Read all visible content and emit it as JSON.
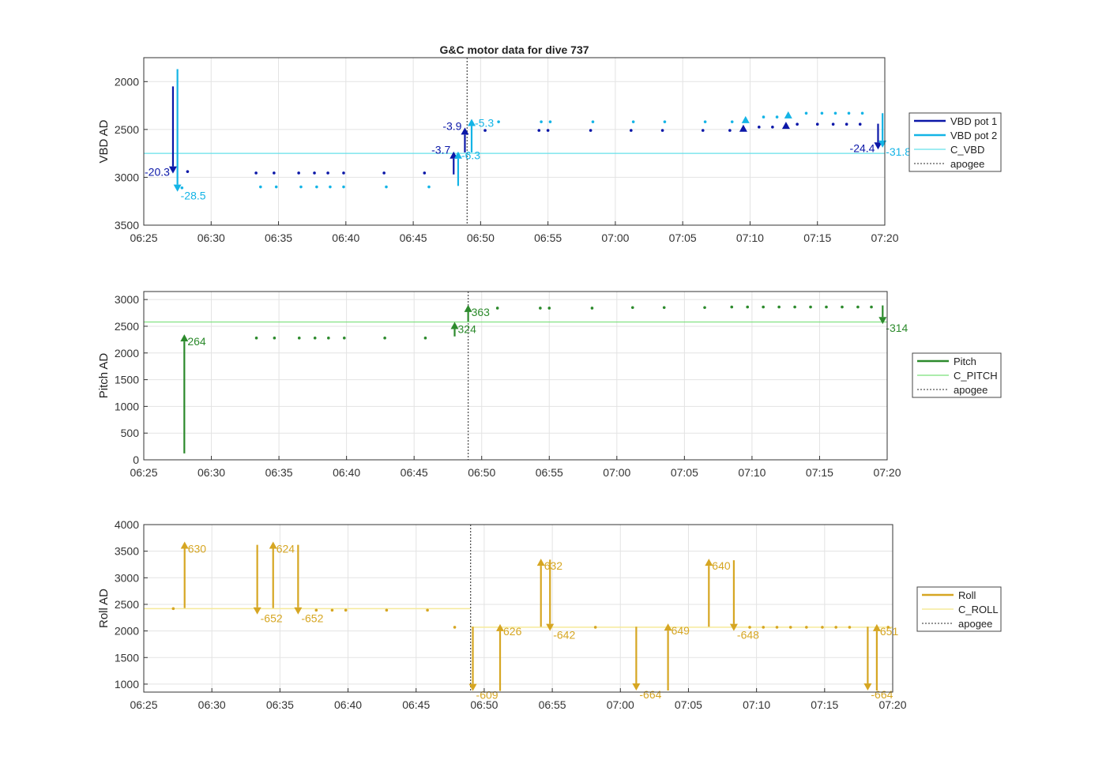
{
  "title": "G&C motor data for dive 737",
  "x_ticks": [
    "06:25",
    "06:30",
    "06:35",
    "06:40",
    "06:45",
    "06:50",
    "06:55",
    "07:00",
    "07:05",
    "07:10",
    "07:15",
    "07:20"
  ],
  "colors": {
    "vbd_pot1": "#0b17a8",
    "vbd_pot2": "#14b4e6",
    "c_vbd": "#66e0ea",
    "pitch": "#2c8a2c",
    "c_pitch": "#7ae07a",
    "roll": "#d6a622",
    "c_roll": "#f5ea9a",
    "apogee": "#555555",
    "grid": "#e3e3e3"
  },
  "chart_data": [
    {
      "type": "line",
      "title": "G&C motor data for dive 737",
      "ylabel": "VBD AD",
      "ylim": [
        3500,
        1750
      ],
      "y_reversed": true,
      "y_ticks": [
        2000,
        2500,
        3000,
        3500
      ],
      "x_range": [
        "06:25",
        "07:20"
      ],
      "grid": true,
      "legend": [
        "VBD pot 1",
        "VBD pot 2",
        "C_VBD",
        "apogee"
      ],
      "apogee": "06:49",
      "c_value": 2750,
      "series": [
        {
          "name": "VBD pot 1",
          "color_key": "vbd_pot1",
          "dots": [
            [
              "06:28:15",
              2940
            ],
            [
              "06:33:20",
              2955
            ],
            [
              "06:34:40",
              2955
            ],
            [
              "06:36:30",
              2955
            ],
            [
              "06:37:40",
              2955
            ],
            [
              "06:38:40",
              2955
            ],
            [
              "06:39:50",
              2955
            ],
            [
              "06:42:50",
              2955
            ],
            [
              "06:45:50",
              2955
            ],
            [
              "06:50:20",
              2510
            ],
            [
              "06:54:20",
              2510
            ],
            [
              "06:55:00",
              2510
            ],
            [
              "06:58:10",
              2510
            ],
            [
              "07:01:10",
              2510
            ],
            [
              "07:03:30",
              2510
            ],
            [
              "07:06:30",
              2510
            ],
            [
              "07:08:30",
              2510
            ],
            [
              "07:10:40",
              2475
            ],
            [
              "07:11:40",
              2475
            ],
            [
              "07:13:30",
              2445
            ],
            [
              "07:15:00",
              2445
            ],
            [
              "07:16:10",
              2445
            ],
            [
              "07:17:10",
              2445
            ],
            [
              "07:18:10",
              2445
            ]
          ],
          "arrows": [
            {
              "x": "06:27:10",
              "from": 2050,
              "to": 2960,
              "label": "-20.3"
            },
            {
              "x": "06:48:00",
              "from": 2970,
              "to": 2730,
              "label": "-3.7"
            },
            {
              "x": "06:48:50",
              "from": 2740,
              "to": 2480,
              "label": "-3.9"
            },
            {
              "x": "07:09:30",
              "from": 2480,
              "to": 2450,
              "label": ""
            },
            {
              "x": "07:12:40",
              "from": 2450,
              "to": 2420,
              "label": ""
            },
            {
              "x": "07:19:30",
              "from": 2440,
              "to": 2710,
              "label": "-24.4"
            }
          ]
        },
        {
          "name": "VBD pot 2",
          "color_key": "vbd_pot2",
          "dots": [
            [
              "06:27:50",
              3110
            ],
            [
              "06:33:40",
              3100
            ],
            [
              "06:34:50",
              3100
            ],
            [
              "06:36:40",
              3100
            ],
            [
              "06:37:50",
              3100
            ],
            [
              "06:38:50",
              3100
            ],
            [
              "06:39:50",
              3100
            ],
            [
              "06:43:00",
              3100
            ],
            [
              "06:46:10",
              3100
            ],
            [
              "06:51:20",
              2420
            ],
            [
              "06:54:30",
              2420
            ],
            [
              "06:55:10",
              2420
            ],
            [
              "06:58:20",
              2420
            ],
            [
              "07:01:20",
              2420
            ],
            [
              "07:03:40",
              2420
            ],
            [
              "07:06:40",
              2420
            ],
            [
              "07:08:40",
              2420
            ],
            [
              "07:11:00",
              2370
            ],
            [
              "07:12:00",
              2370
            ],
            [
              "07:14:10",
              2330
            ],
            [
              "07:15:20",
              2330
            ],
            [
              "07:16:20",
              2330
            ],
            [
              "07:17:20",
              2330
            ],
            [
              "07:18:20",
              2330
            ]
          ],
          "arrows": [
            {
              "x": "06:27:30",
              "from": 1870,
              "to": 3150,
              "label": "-28.5"
            },
            {
              "x": "06:48:20",
              "from": 3090,
              "to": 2730,
              "label": "-6.3"
            },
            {
              "x": "06:49:20",
              "from": 2740,
              "to": 2390,
              "label": "-5.3"
            },
            {
              "x": "07:09:40",
              "from": 2390,
              "to": 2360,
              "label": ""
            },
            {
              "x": "07:12:50",
              "from": 2340,
              "to": 2310,
              "label": ""
            },
            {
              "x": "07:19:50",
              "from": 2330,
              "to": 2690,
              "label": "-31.8"
            }
          ]
        }
      ]
    },
    {
      "type": "line",
      "ylabel": "Pitch AD",
      "ylim": [
        0,
        3150
      ],
      "y_ticks": [
        0,
        500,
        1000,
        1500,
        2000,
        2500,
        3000
      ],
      "x_range": [
        "06:25",
        "07:20"
      ],
      "grid": true,
      "legend": [
        "Pitch",
        "C_PITCH",
        "apogee"
      ],
      "apogee": "06:49",
      "c_value": 2580,
      "series": [
        {
          "name": "Pitch",
          "color_key": "pitch",
          "dots": [
            [
              "06:33:20",
              2280
            ],
            [
              "06:34:40",
              2280
            ],
            [
              "06:36:30",
              2280
            ],
            [
              "06:37:40",
              2280
            ],
            [
              "06:38:40",
              2280
            ],
            [
              "06:39:50",
              2280
            ],
            [
              "06:42:50",
              2280
            ],
            [
              "06:45:50",
              2280
            ],
            [
              "06:51:10",
              2840
            ],
            [
              "06:54:20",
              2840
            ],
            [
              "06:55:00",
              2840
            ],
            [
              "06:58:10",
              2840
            ],
            [
              "07:01:10",
              2850
            ],
            [
              "07:03:30",
              2850
            ],
            [
              "07:06:30",
              2850
            ],
            [
              "07:08:30",
              2860
            ],
            [
              "07:09:40",
              2860
            ],
            [
              "07:10:50",
              2860
            ],
            [
              "07:12:00",
              2860
            ],
            [
              "07:13:10",
              2860
            ],
            [
              "07:14:20",
              2860
            ],
            [
              "07:15:30",
              2860
            ],
            [
              "07:16:40",
              2860
            ],
            [
              "07:17:50",
              2860
            ],
            [
              "07:18:50",
              2860
            ]
          ],
          "arrows": [
            {
              "x": "06:28:00",
              "from": 120,
              "to": 2350,
              "label": "264"
            },
            {
              "x": "06:48:00",
              "from": 2310,
              "to": 2580,
              "label": "324"
            },
            {
              "x": "06:49:00",
              "from": 2590,
              "to": 2900,
              "label": "363"
            },
            {
              "x": "07:19:40",
              "from": 2890,
              "to": 2540,
              "label": "-314"
            }
          ]
        }
      ]
    },
    {
      "type": "line",
      "ylabel": "Roll AD",
      "ylim": [
        850,
        4000
      ],
      "y_ticks": [
        1000,
        1500,
        2000,
        2500,
        3000,
        3500,
        4000
      ],
      "x_range": [
        "06:25",
        "07:20"
      ],
      "grid": true,
      "legend": [
        "Roll",
        "C_ROLL",
        "apogee"
      ],
      "apogee": "06:49",
      "c_roll": [
        {
          "from": "06:25",
          "to": "06:49",
          "value": 2420
        },
        {
          "from": "06:49",
          "to": "07:20",
          "value": 2070
        }
      ],
      "series": [
        {
          "name": "Roll",
          "color_key": "roll",
          "dots": [
            [
              "06:27:10",
              2420
            ],
            [
              "06:37:40",
              2390
            ],
            [
              "06:38:50",
              2390
            ],
            [
              "06:39:50",
              2390
            ],
            [
              "06:42:50",
              2390
            ],
            [
              "06:45:50",
              2390
            ],
            [
              "06:47:50",
              2070
            ],
            [
              "06:58:10",
              2070
            ],
            [
              "07:09:30",
              2070
            ],
            [
              "07:10:30",
              2070
            ],
            [
              "07:11:30",
              2070
            ],
            [
              "07:12:30",
              2070
            ],
            [
              "07:13:40",
              2070
            ],
            [
              "07:14:50",
              2070
            ],
            [
              "07:15:50",
              2070
            ],
            [
              "07:16:50",
              2070
            ],
            [
              "07:19:40",
              2070
            ]
          ],
          "arrows": [
            {
              "x": "06:28:00",
              "from": 2430,
              "to": 3680,
              "label": "630"
            },
            {
              "x": "06:33:20",
              "from": 3620,
              "to": 2310,
              "label": "-652"
            },
            {
              "x": "06:34:30",
              "from": 2430,
              "to": 3680,
              "label": "624"
            },
            {
              "x": "06:36:20",
              "from": 3620,
              "to": 2310,
              "label": "-652"
            },
            {
              "x": "06:49:10",
              "from": 2080,
              "to": 870,
              "label": "-609"
            },
            {
              "x": "06:51:10",
              "from": 870,
              "to": 2130,
              "label": "626"
            },
            {
              "x": "06:54:10",
              "from": 2080,
              "to": 3360,
              "label": "632"
            },
            {
              "x": "06:54:50",
              "from": 3340,
              "to": 2000,
              "label": "-642"
            },
            {
              "x": "07:01:10",
              "from": 2080,
              "to": 880,
              "label": "-664"
            },
            {
              "x": "07:03:30",
              "from": 880,
              "to": 2140,
              "label": "649"
            },
            {
              "x": "07:06:30",
              "from": 2080,
              "to": 3360,
              "label": "640"
            },
            {
              "x": "07:08:20",
              "from": 3330,
              "to": 2000,
              "label": "-648"
            },
            {
              "x": "07:18:10",
              "from": 2080,
              "to": 880,
              "label": "-664"
            },
            {
              "x": "07:18:50",
              "from": 880,
              "to": 2130,
              "label": "651"
            }
          ]
        }
      ]
    }
  ]
}
